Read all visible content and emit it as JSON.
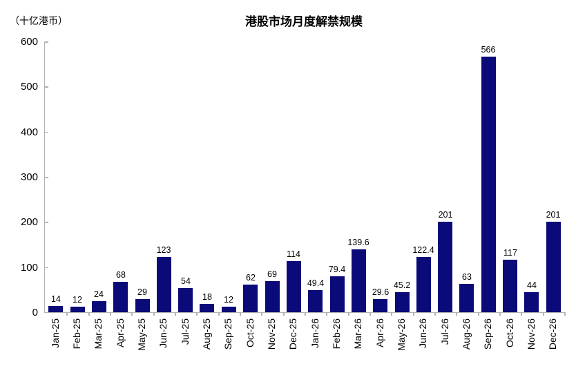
{
  "chart_data": {
    "type": "bar",
    "title": "港股市场月度解禁规模",
    "unit_label": "（十亿港币）",
    "categories": [
      "Jan-25",
      "Feb-25",
      "Mar-25",
      "Apr-25",
      "May-25",
      "Jun-25",
      "Jul-25",
      "Aug-25",
      "Sep-25",
      "Oct-25",
      "Nov-25",
      "Dec-25",
      "Jan-26",
      "Feb-26",
      "Mar-26",
      "Apr-26",
      "May-26",
      "Jun-26",
      "Jul-26",
      "Aug-26",
      "Sep-26",
      "Oct-26",
      "Nov-26",
      "Dec-26"
    ],
    "values": [
      14,
      12,
      24,
      68,
      29,
      123,
      54,
      18,
      12,
      62,
      69,
      114,
      49.4,
      79.4,
      139.6,
      29.6,
      45.2,
      122.4,
      201,
      63,
      566,
      117,
      44,
      201
    ],
    "data_labels": [
      "14",
      "12",
      "24",
      "68",
      "29",
      "123",
      "54",
      "18",
      "12",
      "62",
      "69",
      "114",
      "49.4",
      "79.4",
      "139.6",
      "29.6",
      "45.2",
      "122.4",
      "201",
      "63",
      "566",
      "117",
      "44",
      "201"
    ],
    "xlabel": "",
    "ylabel": "",
    "ylim": [
      0,
      600
    ],
    "y_ticks": [
      0,
      100,
      200,
      300,
      400,
      500,
      600
    ],
    "grid": false,
    "legend": "none",
    "bar_color": "#0a0a78",
    "axis_color": "#b3b3b3",
    "text_color": "#000000"
  }
}
